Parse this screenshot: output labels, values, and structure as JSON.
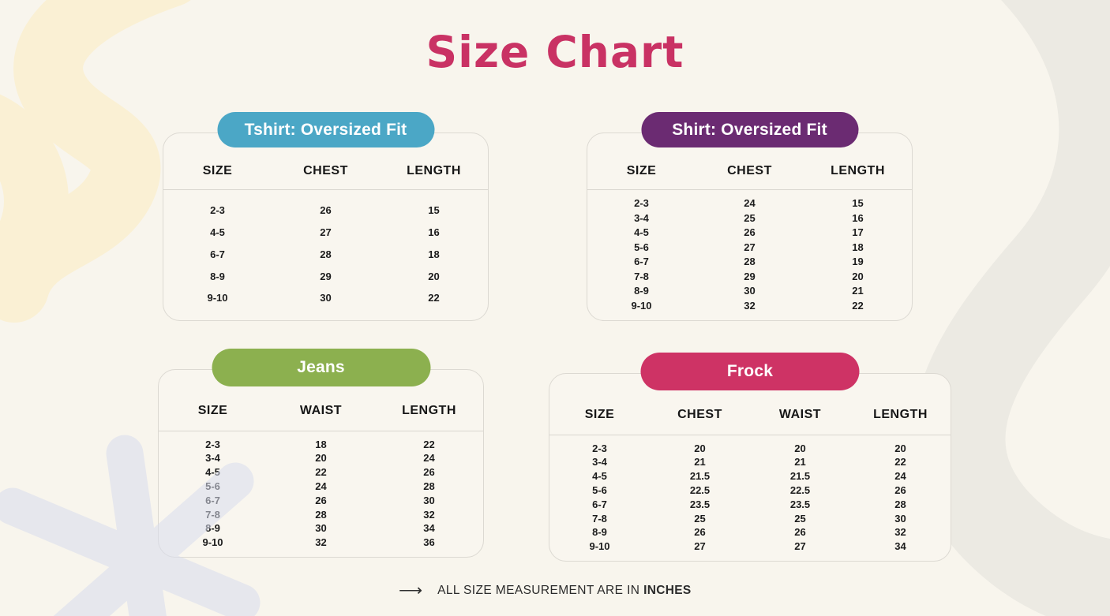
{
  "page": {
    "title": "Size Chart",
    "title_color": "#C93264",
    "background_color": "#F8F5ED",
    "footer": {
      "arrow_glyph": "⟶",
      "note": "ALL SIZE MEASUREMENT ARE IN",
      "note_emphasis": "INCHES"
    }
  },
  "chart_data": [
    {
      "type": "table",
      "title": "Tshirt: Oversized Fit",
      "accent_color": "#4BA7C6",
      "columns": [
        "SIZE",
        "CHEST",
        "LENGTH"
      ],
      "rows": [
        [
          "2-3",
          "26",
          "15"
        ],
        [
          "4-5",
          "27",
          "16"
        ],
        [
          "6-7",
          "28",
          "18"
        ],
        [
          "8-9",
          "29",
          "20"
        ],
        [
          "9-10",
          "30",
          "22"
        ]
      ]
    },
    {
      "type": "table",
      "title": "Shirt: Oversized Fit",
      "accent_color": "#6B2B72",
      "columns": [
        "SIZE",
        "CHEST",
        "LENGTH"
      ],
      "rows": [
        [
          "2-3",
          "24",
          "15"
        ],
        [
          "3-4",
          "25",
          "16"
        ],
        [
          "4-5",
          "26",
          "17"
        ],
        [
          "5-6",
          "27",
          "18"
        ],
        [
          "6-7",
          "28",
          "19"
        ],
        [
          "7-8",
          "29",
          "20"
        ],
        [
          "8-9",
          "30",
          "21"
        ],
        [
          "9-10",
          "32",
          "22"
        ]
      ]
    },
    {
      "type": "table",
      "title": "Jeans",
      "accent_color": "#8CB04F",
      "columns": [
        "SIZE",
        "WAIST",
        "LENGTH"
      ],
      "rows": [
        [
          "2-3",
          "18",
          "22"
        ],
        [
          "3-4",
          "20",
          "24"
        ],
        [
          "4-5",
          "22",
          "26"
        ],
        [
          "5-6",
          "24",
          "28"
        ],
        [
          "6-7",
          "26",
          "30"
        ],
        [
          "7-8",
          "28",
          "32"
        ],
        [
          "8-9",
          "30",
          "34"
        ],
        [
          "9-10",
          "32",
          "36"
        ]
      ]
    },
    {
      "type": "table",
      "title": "Frock",
      "accent_color": "#CE3365",
      "columns": [
        "SIZE",
        "CHEST",
        "WAIST",
        "LENGTH"
      ],
      "rows": [
        [
          "2-3",
          "20",
          "20",
          "20"
        ],
        [
          "3-4",
          "21",
          "21",
          "22"
        ],
        [
          "4-5",
          "21.5",
          "21.5",
          "24"
        ],
        [
          "5-6",
          "22.5",
          "22.5",
          "26"
        ],
        [
          "6-7",
          "23.5",
          "23.5",
          "28"
        ],
        [
          "7-8",
          "25",
          "25",
          "30"
        ],
        [
          "8-9",
          "26",
          "26",
          "32"
        ],
        [
          "9-10",
          "27",
          "27",
          "34"
        ]
      ]
    }
  ]
}
